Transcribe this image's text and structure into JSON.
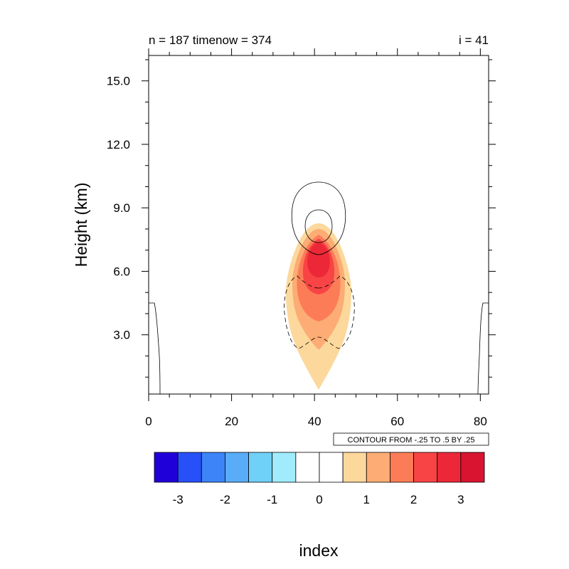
{
  "chart_data": {
    "type": "contour",
    "title_left": "n = 187 timenow = 374",
    "title_right": "i = 41",
    "ylabel": "Height (km)",
    "xlabel": "index",
    "xlim": [
      0,
      82
    ],
    "ylim": [
      0.2,
      16.2
    ],
    "x_ticks": [
      0,
      20,
      40,
      60,
      80
    ],
    "x_tick_labels": [
      "0",
      "20",
      "40",
      "60",
      "80"
    ],
    "y_ticks": [
      3.0,
      6.0,
      9.0,
      12.0,
      15.0
    ],
    "y_tick_labels": [
      "3.0",
      "6.0",
      "9.0",
      "12.0",
      "15.0"
    ],
    "contour_info": "CONTOUR FROM -.25 TO .5 BY .25",
    "colorbar": {
      "colors": [
        "#2000d8",
        "#2850f8",
        "#3c84f8",
        "#58acf8",
        "#70d0f8",
        "#a0ecfc",
        "#ffffff",
        "#ffffff",
        "#fcd89c",
        "#fcac74",
        "#fc7c58",
        "#f84444",
        "#ec2838",
        "#d81430"
      ],
      "tick_labels": [
        "-3",
        "-2",
        "-1",
        "0",
        "1",
        "2",
        "3"
      ]
    },
    "filled_levels": [
      {
        "level": 0.5,
        "color": "#fcd89c"
      },
      {
        "level": 1.0,
        "color": "#fcac74"
      },
      {
        "level": 1.5,
        "color": "#fc7c58"
      },
      {
        "level": 2.0,
        "color": "#f84444"
      },
      {
        "level": 2.5,
        "color": "#ec2838"
      }
    ],
    "line_contours": {
      "positive": [
        0.25,
        0.5
      ],
      "negative": [
        -0.25
      ],
      "zero_lines": "near lateral boundaries, x ≈ 0–3 and 79–82, below 4.5 km"
    }
  }
}
